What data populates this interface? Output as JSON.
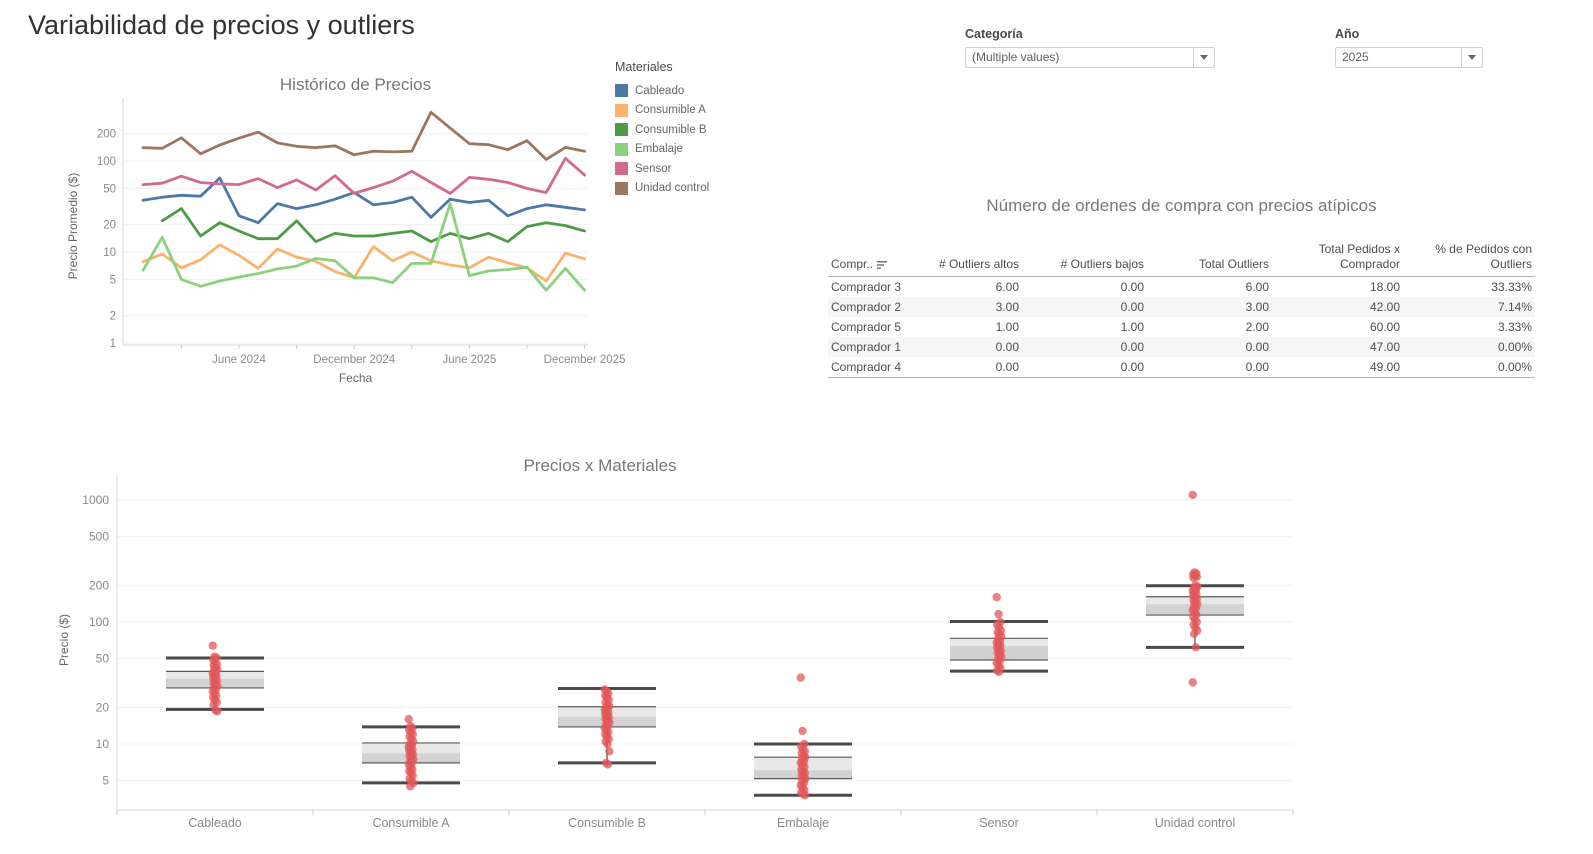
{
  "page": {
    "title": "Variabilidad de precios y outliers"
  },
  "filters": {
    "categoria": {
      "label": "Categoría",
      "value": "(Multiple values)"
    },
    "anio": {
      "label": "Año",
      "value": "2025"
    }
  },
  "legend": {
    "title": "Materiales",
    "items": [
      {
        "label": "Cableado",
        "color": "#4e79a7"
      },
      {
        "label": "Consumible A",
        "color": "#fbb26b"
      },
      {
        "label": "Consumible B",
        "color": "#4e9b47"
      },
      {
        "label": "Embalaje",
        "color": "#8cd17d"
      },
      {
        "label": "Sensor",
        "color": "#d4698f"
      },
      {
        "label": "Unidad control",
        "color": "#9d7660"
      }
    ]
  },
  "outliers_table": {
    "title": "Número de ordenes de compra con precios atípicos",
    "columns": [
      "Compr..",
      "# Outliers altos",
      "# Outliers bajos",
      "Total Outliers",
      "Total Pedidos x\nComprador",
      "% de Pedidos con\nOutliers"
    ],
    "rows": [
      [
        "Comprador 3",
        "6.00",
        "0.00",
        "6.00",
        "18.00",
        "33.33%"
      ],
      [
        "Comprador 2",
        "3.00",
        "0.00",
        "3.00",
        "42.00",
        "7.14%"
      ],
      [
        "Comprador 5",
        "1.00",
        "1.00",
        "2.00",
        "60.00",
        "3.33%"
      ],
      [
        "Comprador 1",
        "0.00",
        "0.00",
        "0.00",
        "47.00",
        "0.00%"
      ],
      [
        "Comprador 4",
        "0.00",
        "0.00",
        "0.00",
        "49.00",
        "0.00%"
      ]
    ]
  },
  "chart_data": [
    {
      "type": "line",
      "title": "Histórico de Precios",
      "xlabel": "Fecha",
      "ylabel": "Precio Promedio ($)",
      "y_scale": "log",
      "y_ticks": [
        1,
        2,
        5,
        10,
        20,
        50,
        100,
        200
      ],
      "x_months": [
        "Jan 2024",
        "Feb 2024",
        "Mar 2024",
        "Apr 2024",
        "May 2024",
        "Jun 2024",
        "Jul 2024",
        "Aug 2024",
        "Sep 2024",
        "Oct 2024",
        "Nov 2024",
        "Dec 2024",
        "Jan 2025",
        "Feb 2025",
        "Mar 2025",
        "Apr 2025",
        "May 2025",
        "Jun 2025",
        "Jul 2025",
        "Aug 2025",
        "Sep 2025",
        "Oct 2025",
        "Nov 2025",
        "Dec 2025"
      ],
      "x_tick_labels": [
        "June 2024",
        "December 2024",
        "June 2025",
        "December 2025"
      ],
      "x_tick_indexes": [
        5,
        11,
        17,
        23
      ],
      "series": [
        {
          "name": "Cableado",
          "color": "#4e79a7",
          "values": [
            37,
            40,
            42,
            41,
            65,
            25,
            21,
            34,
            30,
            33,
            38,
            45,
            33,
            35,
            40,
            24,
            38,
            35,
            37,
            25,
            30,
            33,
            31,
            29
          ]
        },
        {
          "name": "Consumible A",
          "color": "#fbb26b",
          "values": [
            7.8,
            9.5,
            6.7,
            8.2,
            12,
            9.2,
            6.6,
            10.8,
            8.8,
            7.9,
            6.1,
            5.2,
            11.5,
            8,
            10,
            8,
            7.2,
            6.7,
            8.8,
            7.6,
            6.7,
            4.8,
            9.7,
            8.4
          ]
        },
        {
          "name": "Consumible B",
          "color": "#4e9b47",
          "values": [
            null,
            22,
            30,
            15,
            21,
            17,
            14,
            14,
            22,
            13,
            16,
            15,
            15,
            16,
            17,
            13,
            16,
            14,
            16,
            13,
            19,
            21,
            19.5,
            17
          ]
        },
        {
          "name": "Embalaje",
          "color": "#8cd17d",
          "values": [
            6.3,
            14.5,
            5,
            4.2,
            4.8,
            5.3,
            5.8,
            6.5,
            7,
            8.5,
            8,
            5.2,
            5.2,
            4.6,
            7.5,
            7.5,
            34,
            5.5,
            6.2,
            6.4,
            6.8,
            3.8,
            6.6,
            3.8
          ]
        },
        {
          "name": "Sensor",
          "color": "#d4698f",
          "values": [
            55,
            57,
            68,
            58,
            56,
            55,
            64,
            51,
            62,
            48,
            69,
            44,
            51,
            60,
            77,
            58,
            44,
            66,
            63,
            58,
            50,
            45,
            107,
            70
          ]
        },
        {
          "name": "Unidad control",
          "color": "#9d7660",
          "values": [
            140,
            138,
            180,
            120,
            150,
            178,
            208,
            158,
            145,
            140,
            147,
            117,
            128,
            126,
            128,
            343,
            230,
            155,
            151,
            133,
            167,
            104,
            141,
            128
          ]
        }
      ]
    },
    {
      "type": "boxplot",
      "title": "Precios x Materiales",
      "ylabel": "Precio ($)",
      "y_scale": "log",
      "y_ticks": [
        5,
        10,
        20,
        50,
        100,
        200,
        500,
        1000
      ],
      "categories": [
        "Cableado",
        "Consumible A",
        "Consumible B",
        "Embalaje",
        "Sensor",
        "Unidad control"
      ],
      "point_color": "#e15759",
      "boxes": [
        {
          "category": "Cableado",
          "whisker_low": 19.2,
          "q1": 28.8,
          "median": 34.3,
          "q3": 39.4,
          "whisker_high": 50.7,
          "points": [
            64,
            52,
            51,
            49,
            47,
            45,
            44,
            42,
            41,
            40,
            39,
            38,
            37,
            36,
            35,
            34,
            33,
            32,
            31,
            30,
            29,
            28,
            27,
            26,
            25,
            24,
            23,
            22,
            21,
            19,
            18.5
          ]
        },
        {
          "category": "Consumible A",
          "whisker_low": 4.8,
          "q1": 7.0,
          "median": 8.4,
          "q3": 10.2,
          "whisker_high": 13.8,
          "points": [
            16,
            14,
            13.5,
            13,
            12.5,
            12,
            11.5,
            11,
            10.5,
            10,
            9.8,
            9.5,
            9.2,
            9,
            8.8,
            8.5,
            8.2,
            8,
            7.8,
            7.5,
            7.2,
            7,
            6.8,
            6.5,
            6.2,
            6,
            5.8,
            5.5,
            5.2,
            5,
            4.8,
            4.5
          ]
        },
        {
          "category": "Consumible B",
          "whisker_low": 7.0,
          "q1": 13.8,
          "median": 16.7,
          "q3": 20.2,
          "whisker_high": 28.5,
          "points": [
            28,
            27,
            26,
            25,
            24,
            23,
            22,
            21,
            20.5,
            20,
            19.5,
            19,
            18.5,
            18,
            17.5,
            17,
            16.5,
            16,
            15.5,
            15,
            14.5,
            14,
            13.5,
            13,
            12.5,
            12,
            11.5,
            11,
            10.5,
            10,
            8.7,
            7,
            6.8
          ]
        },
        {
          "category": "Embalaje",
          "whisker_low": 3.8,
          "q1": 5.2,
          "median": 6.1,
          "q3": 7.8,
          "whisker_high": 10.0,
          "points": [
            35,
            12.8,
            10,
            9.5,
            9,
            8.7,
            8.4,
            8.1,
            7.8,
            7.5,
            7.2,
            7,
            6.8,
            6.5,
            6.2,
            6,
            5.8,
            5.6,
            5.4,
            5.2,
            5,
            4.8,
            4.6,
            4.4,
            4.2,
            4,
            3.9,
            3.8
          ]
        },
        {
          "category": "Sensor",
          "whisker_low": 39.6,
          "q1": 48.8,
          "median": 63.5,
          "q3": 73.5,
          "whisker_high": 101,
          "points": [
            160,
            116,
            100,
            95,
            90,
            85,
            82,
            79,
            76,
            73,
            70,
            68,
            66,
            64,
            62,
            60,
            58,
            56,
            54,
            52,
            50,
            48,
            46,
            44,
            42,
            40,
            39
          ]
        },
        {
          "category": "Unidad control",
          "whisker_low": 62,
          "q1": 114,
          "median": 140,
          "q3": 161,
          "whisker_high": 198,
          "points": [
            1100,
            255,
            250,
            245,
            240,
            235,
            230,
            200,
            195,
            190,
            185,
            180,
            175,
            170,
            165,
            160,
            155,
            150,
            145,
            140,
            135,
            130,
            125,
            120,
            115,
            110,
            105,
            100,
            95,
            90,
            85,
            80,
            62,
            32
          ]
        }
      ]
    }
  ]
}
